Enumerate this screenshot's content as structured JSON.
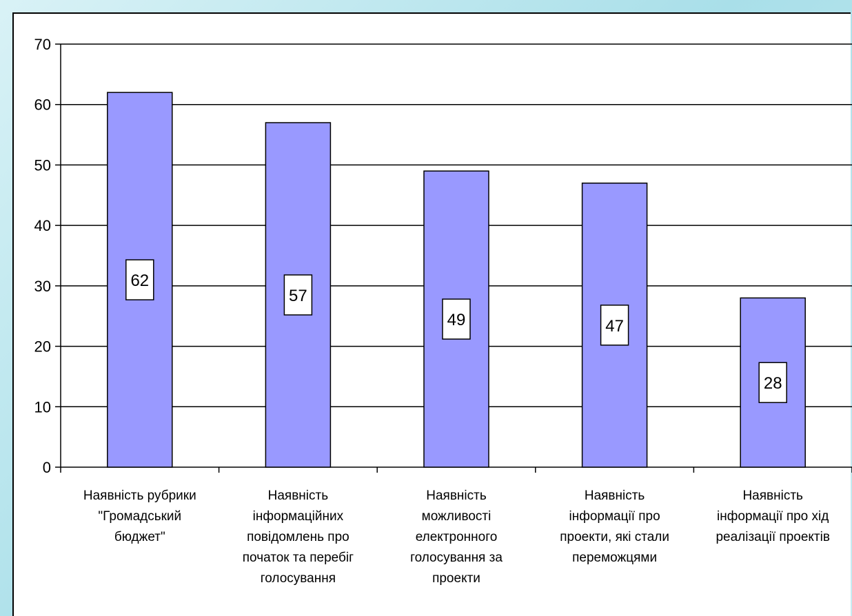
{
  "colors": {
    "bar_fill": "#9999ff",
    "bar_stroke": "#000000",
    "label_box_fill": "#ffffff",
    "gridline": "#000000",
    "background": "#ffffff",
    "frame": "#bfe6ee"
  },
  "chart_data": {
    "type": "bar",
    "title": "",
    "xlabel": "",
    "ylabel": "",
    "ylim": [
      0,
      70
    ],
    "yticks": [
      0,
      10,
      20,
      30,
      40,
      50,
      60,
      70
    ],
    "grid": true,
    "legend": "none",
    "categories": [
      [
        "Наявність рубрики",
        "\"Громадський",
        "бюджет\""
      ],
      [
        "Наявність",
        "інформаційних",
        "повідомлень про",
        "початок та перебіг",
        "голосування"
      ],
      [
        "Наявність",
        "можливості",
        "електронного",
        "голосування за",
        "проекти"
      ],
      [
        "Наявність",
        "інформації про",
        "проекти, які стали",
        "переможцями"
      ],
      [
        "Наявність",
        "інформації про хід",
        "реалізації проектів"
      ]
    ],
    "values": [
      62,
      57,
      49,
      47,
      28
    ],
    "data_labels": [
      "62",
      "57",
      "49",
      "47",
      "28"
    ]
  }
}
